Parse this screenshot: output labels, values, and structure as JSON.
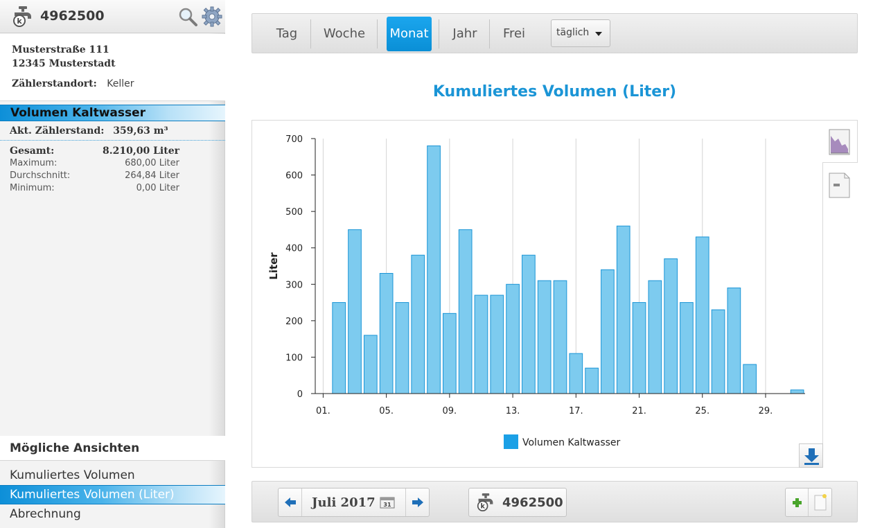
{
  "sidebar": {
    "meter_number": "4962500",
    "address_line1": "Musterstraße 111",
    "address_line2": "12345 Musterstadt",
    "location_label": "Zählerstandort:",
    "location_value": "Keller",
    "volume_header": "Volumen Kaltwasser",
    "reading_label": "Akt. Zählerstand:",
    "reading_value": "359,63 m³",
    "stats": {
      "total_label": "Gesamt:",
      "total_value": "8.210,00 Liter",
      "max_label": "Maximum:",
      "max_value": "680,00 Liter",
      "avg_label": "Durchschnitt:",
      "avg_value": "264,84 Liter",
      "min_label": "Minimum:",
      "min_value": "0,00 Liter"
    },
    "views_title": "Mögliche Ansichten",
    "views": [
      {
        "label": "Kumuliertes Volumen",
        "active": false
      },
      {
        "label": "Kumuliertes Volumen (Liter)",
        "active": true
      },
      {
        "label": "Abrechnung",
        "active": false
      }
    ]
  },
  "toolbar": {
    "tabs": [
      {
        "label": "Tag",
        "active": false
      },
      {
        "label": "Woche",
        "active": false
      },
      {
        "label": "Monat",
        "active": true
      },
      {
        "label": "Jahr",
        "active": false
      },
      {
        "label": "Frei",
        "active": false
      }
    ],
    "interval_value": "täglich"
  },
  "chart_title": "Kumuliertes Volumen (Liter)",
  "chart_data": {
    "type": "bar",
    "title": "Kumuliertes Volumen (Liter)",
    "xlabel": "",
    "ylabel": "Liter",
    "ylim": [
      0,
      700
    ],
    "y_ticks": [
      0,
      100,
      200,
      300,
      400,
      500,
      600,
      700
    ],
    "x_ticks": [
      "01.",
      "05.",
      "09.",
      "13.",
      "17.",
      "21.",
      "25.",
      "29."
    ],
    "grid": "vertical",
    "legend_position": "bottom-center",
    "bar_color": "#7dcbef",
    "bar_border_color": "#1b95d6",
    "series": [
      {
        "name": "Volumen Kaltwasser",
        "x": [
          1,
          2,
          3,
          4,
          5,
          6,
          7,
          8,
          9,
          10,
          11,
          12,
          13,
          14,
          15,
          16,
          17,
          18,
          19,
          20,
          21,
          22,
          23,
          24,
          25,
          26,
          27,
          28,
          29,
          30,
          31
        ],
        "values": [
          0,
          250,
          450,
          160,
          330,
          250,
          380,
          680,
          220,
          450,
          270,
          270,
          300,
          380,
          310,
          310,
          110,
          70,
          340,
          460,
          250,
          310,
          370,
          250,
          430,
          230,
          290,
          80,
          0,
          0,
          10
        ]
      }
    ]
  },
  "icons": {
    "meter": "water-meter-icon",
    "search": "search-icon",
    "settings": "gear-icon",
    "chart_view": "chart-view-icon",
    "table_view": "table-view-icon",
    "download": "download-icon",
    "prev": "arrow-left-icon",
    "next": "arrow-right-icon",
    "calendar": "calendar-icon",
    "add": "plus-icon",
    "note": "note-icon"
  },
  "bottombar": {
    "period": "Juli 2017",
    "calendar_day": "31",
    "meter_number": "4962500"
  }
}
